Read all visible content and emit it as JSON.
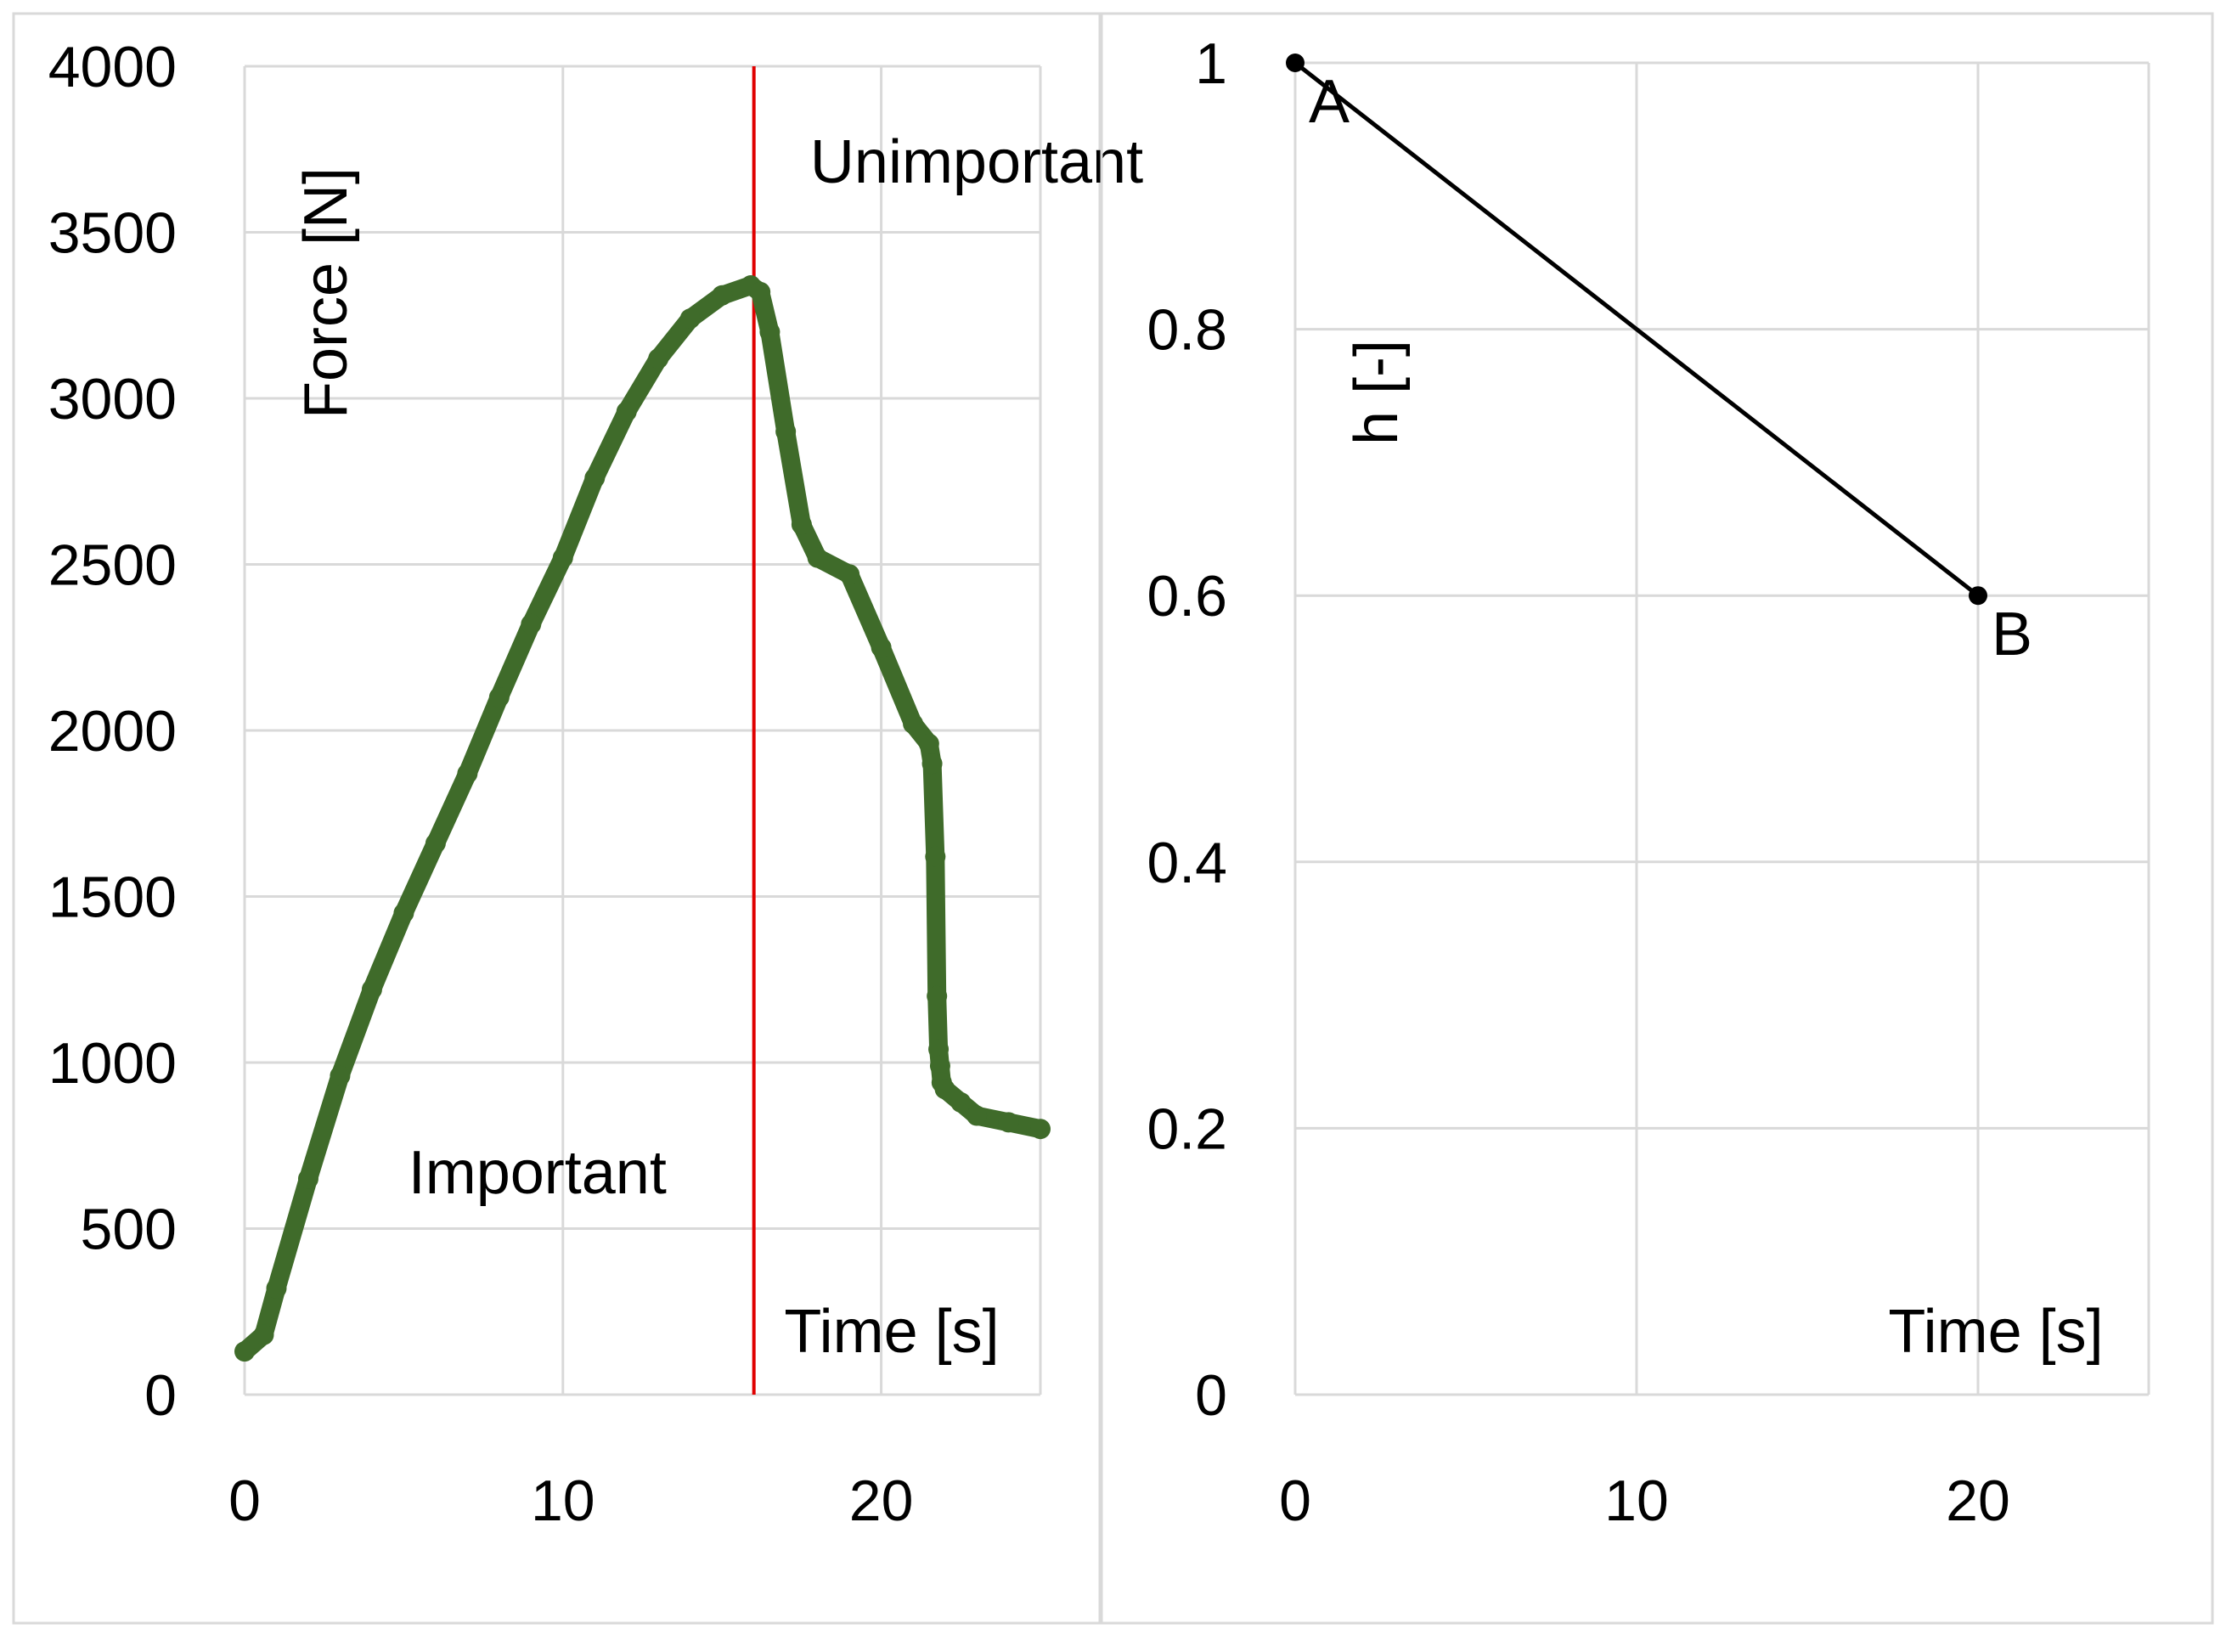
{
  "chart_data": [
    {
      "type": "line",
      "xlim": [
        0,
        25
      ],
      "ylim": [
        0,
        4000
      ],
      "x_ticks": [
        "0",
        "10",
        "20"
      ],
      "y_ticks": [
        "0",
        "500",
        "1000",
        "1500",
        "2000",
        "2500",
        "3000",
        "3500",
        "4000"
      ],
      "xlabel": "Time [s]",
      "ylabel": "Force [N]",
      "grid": true,
      "series": [
        {
          "color": "#3f6b2a",
          "marker": "circle",
          "x": [
            0,
            0.6,
            1,
            2,
            3,
            4,
            5,
            6,
            7,
            8,
            9,
            10,
            11,
            12,
            13,
            14,
            15,
            15.9,
            16.2,
            16.5,
            17,
            17.5,
            18,
            19,
            20,
            21,
            21.5,
            21.6,
            21.7,
            21.75,
            21.8,
            21.85,
            21.9,
            22,
            22.5,
            23,
            24,
            25
          ],
          "y": [
            130,
            180,
            320,
            650,
            960,
            1220,
            1450,
            1660,
            1870,
            2100,
            2320,
            2520,
            2760,
            2960,
            3120,
            3240,
            3310,
            3340,
            3320,
            3200,
            2900,
            2620,
            2520,
            2470,
            2250,
            2020,
            1960,
            1900,
            1620,
            1200,
            1040,
            990,
            940,
            920,
            880,
            840,
            820,
            800
          ]
        }
      ],
      "reference_line": {
        "x": 16,
        "color": "#e00000"
      },
      "annotations": [
        {
          "text": "Important",
          "x": 10,
          "y": 760,
          "color": "#e00000"
        },
        {
          "text": "Unimportant",
          "x": 23,
          "y": 3700,
          "color": "#000000"
        }
      ]
    },
    {
      "type": "line",
      "xlim": [
        0,
        25
      ],
      "ylim": [
        0,
        1
      ],
      "x_ticks": [
        "0",
        "10",
        "20"
      ],
      "y_ticks": [
        "0",
        "0.2",
        "0.4",
        "0.6",
        "0.8",
        "1"
      ],
      "xlabel": "Time [s]",
      "ylabel": "h [-]",
      "grid": true,
      "series": [
        {
          "color": "#000000",
          "marker": "circle",
          "x": [
            0,
            20
          ],
          "y": [
            1,
            0.6
          ],
          "point_labels": [
            "A",
            "B"
          ]
        }
      ]
    }
  ]
}
